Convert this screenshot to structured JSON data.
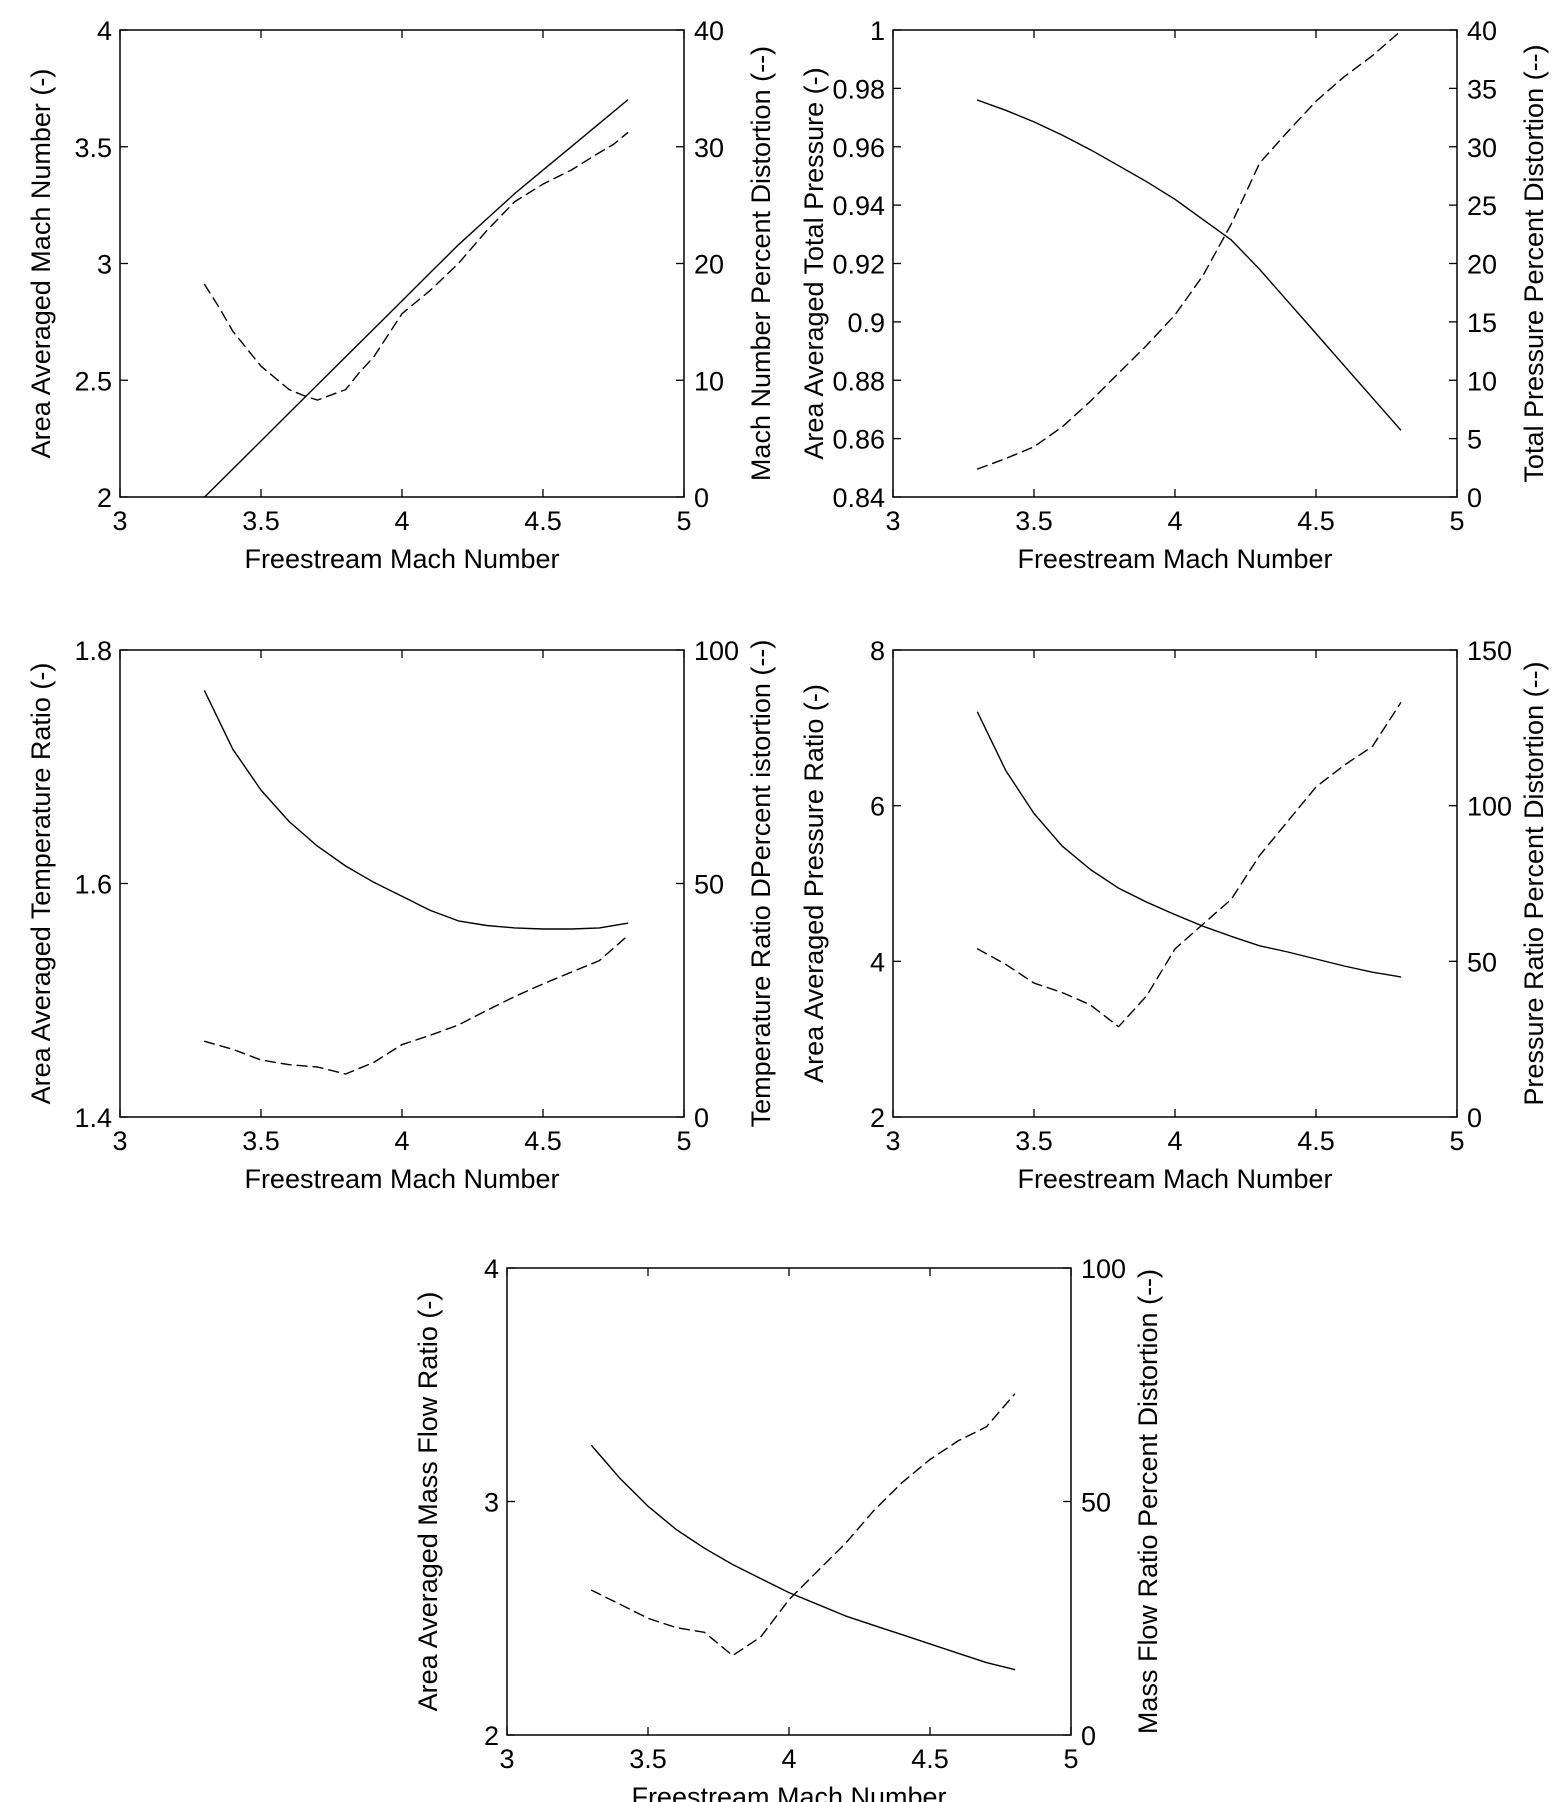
{
  "figure": {
    "background": "#ffffff",
    "line_color": "#000000"
  },
  "chart_data": [
    {
      "type": "line",
      "xlabel": "Freestream Mach Number",
      "ylabel": "Area Averaged Mach Number (-)",
      "ylabel_right": "Mach Number Percent Distortion (--)",
      "xlim": [
        3,
        5
      ],
      "ylim": [
        2,
        4
      ],
      "ylim_right": [
        0,
        40
      ],
      "xticks": [
        3,
        3.5,
        4,
        4.5,
        5
      ],
      "xtick_labels": [
        "3",
        "3.5",
        "4",
        "4.5",
        "5"
      ],
      "yticks": [
        2,
        2.5,
        3,
        3.5,
        4
      ],
      "ytick_labels": [
        "2",
        "2.5",
        "3",
        "3.5",
        "4"
      ],
      "yticks_right": [
        0,
        10,
        20,
        30,
        40
      ],
      "ytick_labels_right": [
        "0",
        "10",
        "20",
        "30",
        "40"
      ],
      "grid": false,
      "series": [
        {
          "axis": "left",
          "style": "solid",
          "x": [
            3.3,
            3.4,
            3.5,
            3.6,
            3.7,
            3.8,
            3.9,
            4.0,
            4.1,
            4.2,
            4.3,
            4.4,
            4.5,
            4.6,
            4.7,
            4.8
          ],
          "y": [
            2.0,
            2.12,
            2.24,
            2.36,
            2.48,
            2.6,
            2.72,
            2.84,
            2.96,
            3.08,
            3.19,
            3.3,
            3.4,
            3.5,
            3.6,
            3.7
          ]
        },
        {
          "axis": "right",
          "style": "dashed",
          "x": [
            3.3,
            3.35,
            3.4,
            3.5,
            3.6,
            3.65,
            3.7,
            3.8,
            3.85,
            3.9,
            4.0,
            4.1,
            4.2,
            4.3,
            4.4,
            4.5,
            4.6,
            4.7,
            4.75,
            4.8
          ],
          "y": [
            18.2,
            16.3,
            14.2,
            11.2,
            9.2,
            8.7,
            8.3,
            9.2,
            10.7,
            12.0,
            15.7,
            17.7,
            20.0,
            22.8,
            25.3,
            26.8,
            28.0,
            29.5,
            30.2,
            31.2
          ]
        }
      ]
    },
    {
      "type": "line",
      "xlabel": "Freestream Mach Number",
      "ylabel": "Area Averaged Total Pressure (-)",
      "ylabel_right": "Total Pressure Percent Distortion (--)",
      "xlim": [
        3,
        5
      ],
      "ylim": [
        0.84,
        1.0
      ],
      "ylim_right": [
        0,
        40
      ],
      "xticks": [
        3,
        3.5,
        4,
        4.5,
        5
      ],
      "xtick_labels": [
        "3",
        "3.5",
        "4",
        "4.5",
        "5"
      ],
      "yticks": [
        0.84,
        0.86,
        0.88,
        0.9,
        0.92,
        0.94,
        0.96,
        0.98,
        1.0
      ],
      "ytick_labels": [
        "0.84",
        "0.86",
        "0.88",
        "0.9",
        "0.92",
        "0.94",
        "0.96",
        "0.98",
        "1"
      ],
      "yticks_right": [
        0,
        5,
        10,
        15,
        20,
        25,
        30,
        35,
        40
      ],
      "ytick_labels_right": [
        "0",
        "5",
        "10",
        "15",
        "20",
        "25",
        "30",
        "35",
        "40"
      ],
      "grid": false,
      "series": [
        {
          "axis": "left",
          "style": "solid",
          "x": [
            3.3,
            3.4,
            3.5,
            3.6,
            3.7,
            3.8,
            3.9,
            4.0,
            4.1,
            4.2,
            4.3,
            4.4,
            4.5,
            4.6,
            4.7,
            4.8
          ],
          "y": [
            0.976,
            0.9725,
            0.9685,
            0.964,
            0.959,
            0.9535,
            0.948,
            0.942,
            0.935,
            0.928,
            0.918,
            0.907,
            0.896,
            0.885,
            0.874,
            0.863
          ]
        },
        {
          "axis": "right",
          "style": "dashed",
          "x": [
            3.3,
            3.4,
            3.5,
            3.6,
            3.7,
            3.8,
            3.9,
            4.0,
            4.1,
            4.2,
            4.3,
            4.4,
            4.5,
            4.6,
            4.7,
            4.8
          ],
          "y": [
            2.4,
            3.3,
            4.3,
            6.0,
            8.2,
            10.6,
            13.0,
            15.6,
            19.0,
            23.4,
            28.6,
            31.3,
            33.9,
            36.0,
            37.8,
            39.9
          ]
        }
      ]
    },
    {
      "type": "line",
      "xlabel": "Freestream Mach Number",
      "ylabel": "Area Averaged Temperature Ratio (-)",
      "ylabel_right": "Temperature Ratio DPercent istortion (--)",
      "xlim": [
        3,
        5
      ],
      "ylim": [
        1.4,
        1.8
      ],
      "ylim_right": [
        0,
        100
      ],
      "xticks": [
        3,
        3.5,
        4,
        4.5,
        5
      ],
      "xtick_labels": [
        "3",
        "3.5",
        "4",
        "4.5",
        "5"
      ],
      "yticks": [
        1.4,
        1.6,
        1.8
      ],
      "ytick_labels": [
        "1.4",
        "1.6",
        "1.8"
      ],
      "yticks_right": [
        0,
        50,
        100
      ],
      "ytick_labels_right": [
        "0",
        "50",
        "100"
      ],
      "grid": false,
      "series": [
        {
          "axis": "left",
          "style": "solid",
          "x": [
            3.3,
            3.4,
            3.5,
            3.6,
            3.7,
            3.8,
            3.9,
            4.0,
            4.1,
            4.2,
            4.3,
            4.4,
            4.5,
            4.6,
            4.7,
            4.8
          ],
          "y": [
            1.765,
            1.715,
            1.68,
            1.653,
            1.632,
            1.615,
            1.601,
            1.589,
            1.577,
            1.568,
            1.564,
            1.562,
            1.561,
            1.561,
            1.562,
            1.566
          ]
        },
        {
          "axis": "right",
          "style": "dashed",
          "x": [
            3.3,
            3.4,
            3.5,
            3.6,
            3.7,
            3.8,
            3.9,
            4.0,
            4.1,
            4.2,
            4.3,
            4.4,
            4.5,
            4.6,
            4.7,
            4.8
          ],
          "y": [
            16.2,
            14.5,
            12.2,
            11.2,
            10.7,
            9.2,
            11.7,
            15.5,
            17.5,
            19.7,
            22.8,
            25.8,
            28.5,
            31.0,
            33.5,
            38.8
          ]
        }
      ]
    },
    {
      "type": "line",
      "xlabel": "Freestream Mach Number",
      "ylabel": "Area Averaged Pressure Ratio (-)",
      "ylabel_right": "Pressure Ratio Percent Distortion (--)",
      "xlim": [
        3,
        5
      ],
      "ylim": [
        2,
        8
      ],
      "ylim_right": [
        0,
        150
      ],
      "xticks": [
        3,
        3.5,
        4,
        4.5,
        5
      ],
      "xtick_labels": [
        "3",
        "3.5",
        "4",
        "4.5",
        "5"
      ],
      "yticks": [
        2,
        4,
        6,
        8
      ],
      "ytick_labels": [
        "2",
        "4",
        "6",
        "8"
      ],
      "yticks_right": [
        0,
        50,
        100,
        150
      ],
      "ytick_labels_right": [
        "0",
        "50",
        "100",
        "150"
      ],
      "grid": false,
      "series": [
        {
          "axis": "left",
          "style": "solid",
          "x": [
            3.3,
            3.4,
            3.5,
            3.6,
            3.7,
            3.8,
            3.9,
            4.0,
            4.1,
            4.2,
            4.3,
            4.4,
            4.5,
            4.6,
            4.7,
            4.8
          ],
          "y": [
            7.2,
            6.45,
            5.9,
            5.48,
            5.18,
            4.94,
            4.76,
            4.6,
            4.45,
            4.32,
            4.2,
            4.12,
            4.03,
            3.94,
            3.86,
            3.8
          ]
        },
        {
          "axis": "right",
          "style": "dashed",
          "x": [
            3.3,
            3.4,
            3.5,
            3.6,
            3.7,
            3.8,
            3.9,
            4.0,
            4.1,
            4.2,
            4.3,
            4.4,
            4.5,
            4.6,
            4.7,
            4.8
          ],
          "y": [
            54,
            49,
            43,
            40,
            36,
            29,
            39,
            54,
            62,
            70,
            84,
            95,
            106,
            113,
            119,
            133
          ]
        }
      ]
    },
    {
      "type": "line",
      "xlabel": "Freestream Mach Number",
      "ylabel": "Area Averaged Mass Flow Ratio (-)",
      "ylabel_right": "Mass Flow Ratio Percent Distortion (--)",
      "xlim": [
        3,
        5
      ],
      "ylim": [
        2,
        4
      ],
      "ylim_right": [
        0,
        100
      ],
      "xticks": [
        3,
        3.5,
        4,
        4.5,
        5
      ],
      "xtick_labels": [
        "3",
        "3.5",
        "4",
        "4.5",
        "5"
      ],
      "yticks": [
        2,
        3,
        4
      ],
      "ytick_labels": [
        "2",
        "3",
        "4"
      ],
      "yticks_right": [
        0,
        50,
        100
      ],
      "ytick_labels_right": [
        "0",
        "50",
        "100"
      ],
      "grid": false,
      "series": [
        {
          "axis": "left",
          "style": "solid",
          "x": [
            3.3,
            3.4,
            3.5,
            3.6,
            3.7,
            3.8,
            3.9,
            4.0,
            4.1,
            4.2,
            4.3,
            4.4,
            4.5,
            4.6,
            4.7,
            4.8
          ],
          "y": [
            3.24,
            3.1,
            2.98,
            2.88,
            2.8,
            2.73,
            2.67,
            2.61,
            2.56,
            2.51,
            2.47,
            2.43,
            2.39,
            2.35,
            2.31,
            2.28
          ]
        },
        {
          "axis": "right",
          "style": "dashed",
          "x": [
            3.3,
            3.4,
            3.5,
            3.6,
            3.7,
            3.8,
            3.9,
            4.0,
            4.1,
            4.2,
            4.3,
            4.4,
            4.5,
            4.6,
            4.7,
            4.8
          ],
          "y": [
            31,
            28,
            25,
            23,
            22,
            17,
            21,
            29,
            35,
            41,
            48,
            54,
            59,
            63,
            66,
            73
          ]
        }
      ]
    }
  ]
}
